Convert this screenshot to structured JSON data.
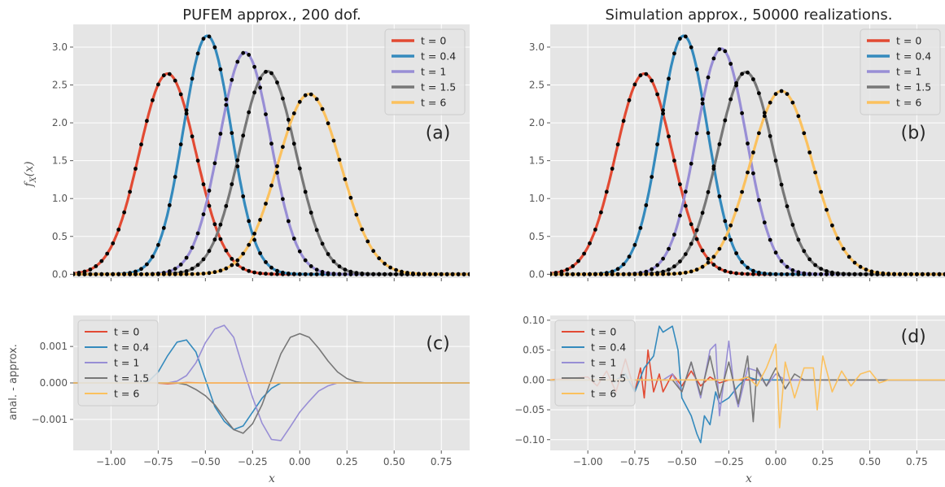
{
  "colors": {
    "t0": "#e24a33",
    "t04": "#348abd",
    "t1": "#988ed5",
    "t15": "#777777",
    "t6": "#fbc15e",
    "axes_bg": "#e5e5e5",
    "grid": "#ffffff",
    "markers": "#000000"
  },
  "chart_data": [
    {
      "id": "a",
      "type": "line",
      "title": "PUFEM approx., 200 dof.",
      "panel_label": "(a)",
      "ylabel": "f_X(x)",
      "ylabel_main": "f",
      "ylabel_sub": "X",
      "ylabel_tail": "(x)",
      "xlim": [
        -1.2,
        0.9
      ],
      "ylim": [
        -0.05,
        3.3
      ],
      "xticks": [
        -1.0,
        -0.75,
        -0.5,
        -0.25,
        0.0,
        0.25,
        0.5,
        0.75
      ],
      "yticks": [
        0.0,
        0.5,
        1.0,
        1.5,
        2.0,
        2.5,
        3.0
      ],
      "ytick_labels": [
        "0.0",
        "0.5",
        "1.0",
        "1.5",
        "2.0",
        "2.5",
        "3.0"
      ],
      "legend": "top-right",
      "grid": true,
      "markers": "black dots over each curve (analytical solution)",
      "series": [
        {
          "name": "t = 0",
          "color_key": "t0",
          "peak_x": -0.7,
          "peak_y": 2.65,
          "sigma": 0.15
        },
        {
          "name": "t = 0.4",
          "color_key": "t04",
          "peak_x": -0.49,
          "peak_y": 3.15,
          "sigma": 0.127
        },
        {
          "name": "t = 1",
          "color_key": "t1",
          "peak_x": -0.29,
          "peak_y": 2.93,
          "sigma": 0.136
        },
        {
          "name": "t = 1.5",
          "color_key": "t15",
          "peak_x": -0.17,
          "peak_y": 2.68,
          "sigma": 0.149
        },
        {
          "name": "t = 6",
          "color_key": "t6",
          "peak_x": 0.05,
          "peak_y": 2.38,
          "sigma": 0.168
        }
      ]
    },
    {
      "id": "b",
      "type": "line",
      "title": "Simulation approx., 50000 realizations.",
      "panel_label": "(b)",
      "xlim": [
        -1.2,
        0.9
      ],
      "ylim": [
        -0.05,
        3.3
      ],
      "xticks": [
        -1.0,
        -0.75,
        -0.5,
        -0.25,
        0.0,
        0.25,
        0.5,
        0.75
      ],
      "yticks": [
        0.0,
        0.5,
        1.0,
        1.5,
        2.0,
        2.5,
        3.0
      ],
      "ytick_labels": [
        "0.0",
        "0.5",
        "1.0",
        "1.5",
        "2.0",
        "2.5",
        "3.0"
      ],
      "legend": "top-right",
      "grid": true,
      "markers": "black dots over each curve (analytical solution)",
      "series": [
        {
          "name": "t = 0",
          "color_key": "t0",
          "peak_x": -0.7,
          "peak_y": 2.65,
          "sigma": 0.15
        },
        {
          "name": "t = 0.4",
          "color_key": "t04",
          "peak_x": -0.49,
          "peak_y": 3.15,
          "sigma": 0.127
        },
        {
          "name": "t = 1",
          "color_key": "t1",
          "peak_x": -0.29,
          "peak_y": 2.98,
          "sigma": 0.134
        },
        {
          "name": "t = 1.5",
          "color_key": "t15",
          "peak_x": -0.16,
          "peak_y": 2.67,
          "sigma": 0.149
        },
        {
          "name": "t = 6",
          "color_key": "t6",
          "peak_x": 0.03,
          "peak_y": 2.42,
          "sigma": 0.166
        }
      ]
    },
    {
      "id": "c",
      "type": "line",
      "panel_label": "(c)",
      "ylabel": "anal. - approx.",
      "xlabel": "x",
      "xlim": [
        -1.2,
        0.9
      ],
      "ylim": [
        -0.00185,
        0.00185
      ],
      "xticks": [
        -1.0,
        -0.75,
        -0.5,
        -0.25,
        0.0,
        0.25,
        0.5,
        0.75
      ],
      "xtick_labels": [
        "−1.00",
        "−0.75",
        "−0.50",
        "−0.25",
        "0.00",
        "0.25",
        "0.50",
        "0.75"
      ],
      "yticks": [
        -0.001,
        0.0,
        0.001
      ],
      "ytick_labels": [
        "−0.001",
        "0.000",
        "0.001"
      ],
      "legend": "upper-left",
      "grid": true,
      "series": [
        {
          "name": "t = 0",
          "color_key": "t0",
          "x": [
            -1.2,
            -0.9,
            -0.8,
            -0.7,
            -0.6,
            -0.5,
            0.9
          ],
          "y": [
            0,
            0,
            1e-05,
            -2e-05,
            1e-05,
            0,
            0
          ]
        },
        {
          "name": "t = 0.4",
          "color_key": "t04",
          "x": [
            -1.2,
            -0.85,
            -0.8,
            -0.75,
            -0.7,
            -0.65,
            -0.6,
            -0.55,
            -0.5,
            -0.45,
            -0.4,
            -0.35,
            -0.3,
            -0.25,
            -0.2,
            -0.15,
            -0.1,
            0.9
          ],
          "y": [
            0,
            0,
            5e-05,
            0.0003,
            0.00075,
            0.00112,
            0.00118,
            0.00085,
            0.0001,
            -0.00065,
            -0.00105,
            -0.00128,
            -0.00118,
            -0.0008,
            -0.00042,
            -0.00015,
            0,
            0
          ]
        },
        {
          "name": "t = 1",
          "color_key": "t1",
          "x": [
            -1.2,
            -0.7,
            -0.65,
            -0.6,
            -0.55,
            -0.5,
            -0.45,
            -0.4,
            -0.35,
            -0.3,
            -0.25,
            -0.2,
            -0.15,
            -0.1,
            -0.05,
            0.0,
            0.05,
            0.1,
            0.15,
            0.2,
            0.9
          ],
          "y": [
            0,
            0,
            5e-05,
            0.0002,
            0.00055,
            0.0011,
            0.00148,
            0.00158,
            0.00125,
            0.0004,
            -0.0004,
            -0.0011,
            -0.00155,
            -0.00158,
            -0.0012,
            -0.0008,
            -0.0005,
            -0.00022,
            -8e-05,
            0,
            0
          ]
        },
        {
          "name": "t = 1.5",
          "color_key": "t15",
          "x": [
            -1.2,
            -0.65,
            -0.6,
            -0.55,
            -0.5,
            -0.45,
            -0.4,
            -0.35,
            -0.3,
            -0.25,
            -0.2,
            -0.15,
            -0.1,
            -0.05,
            0.0,
            0.05,
            0.1,
            0.15,
            0.2,
            0.25,
            0.3,
            0.35,
            0.9
          ],
          "y": [
            0,
            0,
            -5e-05,
            -0.00018,
            -0.00035,
            -0.0006,
            -0.00095,
            -0.00128,
            -0.00138,
            -0.00112,
            -0.0006,
            0.0001,
            0.0008,
            0.00125,
            0.00135,
            0.00125,
            0.00095,
            0.0006,
            0.0003,
            0.00012,
            3e-05,
            0,
            0
          ]
        },
        {
          "name": "t = 6",
          "color_key": "t6",
          "x": [
            -1.2,
            0.9
          ],
          "y": [
            0,
            0
          ]
        }
      ]
    },
    {
      "id": "d",
      "type": "line",
      "panel_label": "(d)",
      "xlabel": "x",
      "xlim": [
        -1.2,
        0.9
      ],
      "ylim": [
        -0.118,
        0.108
      ],
      "xticks": [
        -1.0,
        -0.75,
        -0.5,
        -0.25,
        0.0,
        0.25,
        0.5,
        0.75
      ],
      "xtick_labels": [
        "−1.00",
        "−0.75",
        "−0.50",
        "−0.25",
        "0.00",
        "0.25",
        "0.50",
        "0.75"
      ],
      "yticks": [
        -0.1,
        -0.05,
        0.0,
        0.05,
        0.1
      ],
      "ytick_labels": [
        "−0.10",
        "−0.05",
        "0.00",
        "0.05",
        "0.10"
      ],
      "legend": "upper-left",
      "grid": true,
      "series": [
        {
          "name": "t = 0",
          "color_key": "t0",
          "x": [
            -1.2,
            -1.0,
            -0.95,
            -0.9,
            -0.85,
            -0.8,
            -0.75,
            -0.72,
            -0.7,
            -0.68,
            -0.65,
            -0.62,
            -0.6,
            -0.55,
            -0.5,
            -0.45,
            -0.4,
            -0.35,
            -0.3,
            -0.25,
            0.9
          ],
          "y": [
            0,
            0.005,
            -0.01,
            0.015,
            -0.02,
            0.035,
            -0.02,
            0.02,
            -0.03,
            0.05,
            -0.02,
            0.01,
            -0.02,
            0.01,
            -0.01,
            0.015,
            -0.01,
            0.005,
            -0.005,
            0,
            0
          ]
        },
        {
          "name": "t = 0.4",
          "color_key": "t04",
          "x": [
            -1.2,
            -0.85,
            -0.8,
            -0.75,
            -0.7,
            -0.65,
            -0.62,
            -0.6,
            -0.55,
            -0.52,
            -0.5,
            -0.45,
            -0.42,
            -0.4,
            -0.38,
            -0.35,
            -0.32,
            -0.3,
            -0.25,
            -0.2,
            -0.15,
            -0.1,
            0.9
          ],
          "y": [
            0,
            0,
            0.01,
            -0.02,
            0.02,
            0.04,
            0.09,
            0.08,
            0.09,
            0.05,
            -0.03,
            -0.06,
            -0.09,
            -0.105,
            -0.06,
            -0.075,
            -0.02,
            -0.04,
            -0.03,
            -0.01,
            0.005,
            0,
            0
          ]
        },
        {
          "name": "t = 1",
          "color_key": "t1",
          "x": [
            -1.2,
            -0.6,
            -0.55,
            -0.5,
            -0.45,
            -0.4,
            -0.35,
            -0.32,
            -0.3,
            -0.25,
            -0.22,
            -0.2,
            -0.15,
            -0.1,
            -0.05,
            0.0,
            0.05,
            0.1,
            0.9
          ],
          "y": [
            0,
            0,
            0.01,
            -0.02,
            0.03,
            -0.03,
            0.05,
            0.06,
            -0.06,
            0.065,
            -0.02,
            -0.045,
            0.02,
            0.015,
            -0.01,
            0.01,
            0,
            0,
            0
          ]
        },
        {
          "name": "t = 1.5",
          "color_key": "t15",
          "x": [
            -1.2,
            -0.55,
            -0.5,
            -0.45,
            -0.4,
            -0.35,
            -0.3,
            -0.25,
            -0.2,
            -0.15,
            -0.12,
            -0.1,
            -0.05,
            0.0,
            0.05,
            0.1,
            0.15,
            0.2,
            0.9
          ],
          "y": [
            0,
            0,
            -0.02,
            0.03,
            -0.025,
            0.04,
            -0.03,
            0.03,
            -0.04,
            0.04,
            -0.07,
            0.02,
            -0.01,
            0.02,
            -0.015,
            0.01,
            0,
            0,
            0
          ]
        },
        {
          "name": "t = 6",
          "color_key": "t6",
          "x": [
            -1.2,
            -0.2,
            -0.15,
            -0.1,
            -0.05,
            0.0,
            0.02,
            0.05,
            0.1,
            0.15,
            0.2,
            0.22,
            0.25,
            0.3,
            0.35,
            0.4,
            0.45,
            0.5,
            0.55,
            0.6,
            0.9
          ],
          "y": [
            0,
            0,
            0.005,
            -0.01,
            0.02,
            0.06,
            -0.08,
            0.03,
            -0.03,
            0.02,
            0.02,
            -0.05,
            0.04,
            -0.02,
            0.015,
            -0.01,
            0.01,
            0.015,
            -0.005,
            0,
            0
          ]
        }
      ]
    }
  ]
}
